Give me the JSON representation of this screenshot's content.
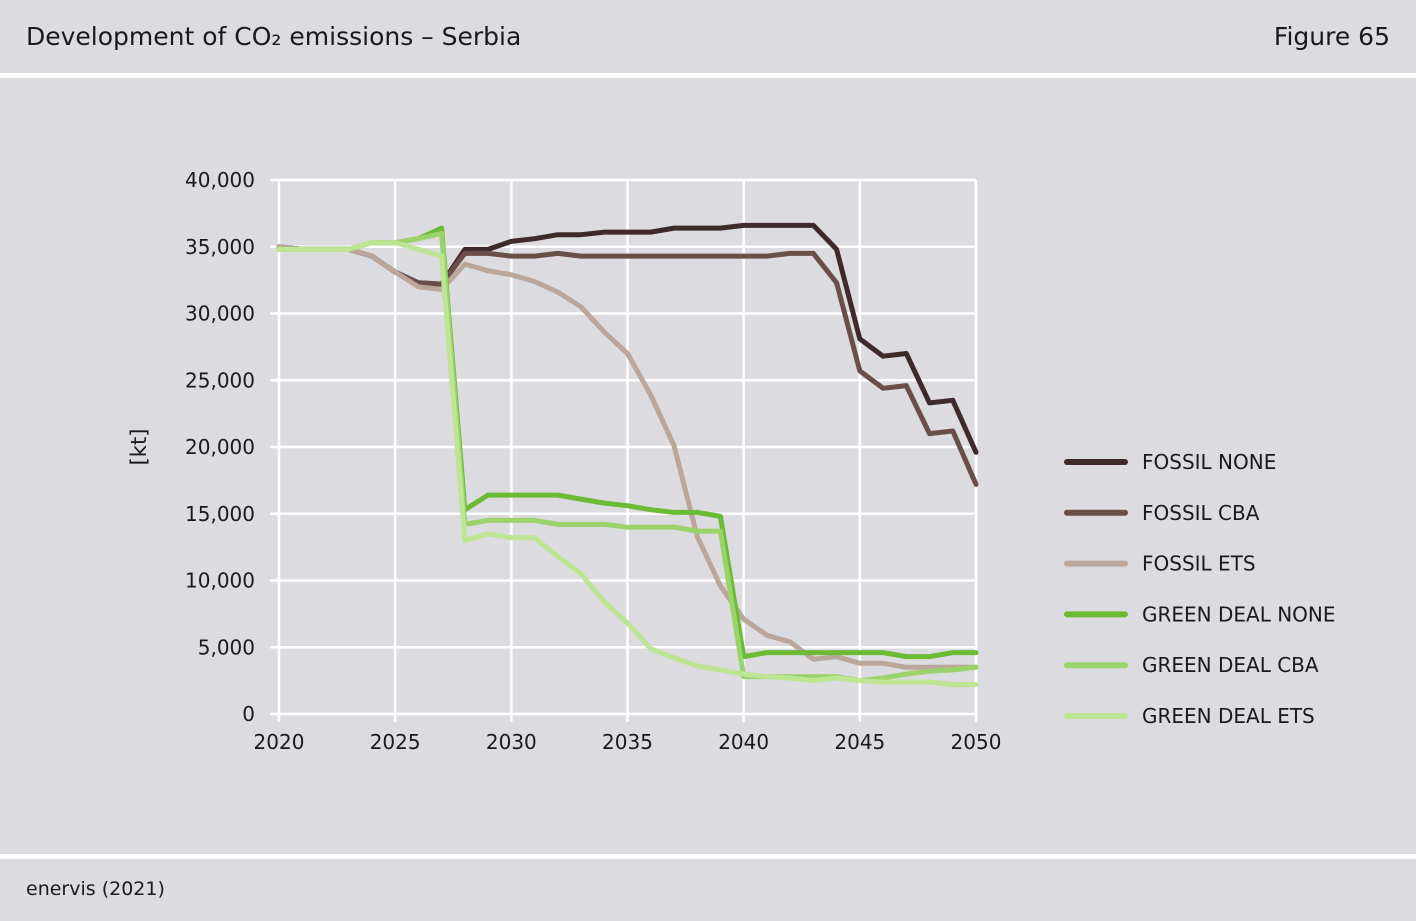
{
  "header": {
    "title": "Development of CO₂ emissions – Serbia",
    "figure_label": "Figure 65"
  },
  "footer": {
    "source": "enervis (2021)"
  },
  "colors": {
    "background": "#dcdbe0",
    "grid": "#ffffff",
    "fossil_none": "#3f2a2b",
    "fossil_cba": "#6a4e4a",
    "fossil_ets": "#bba69c",
    "green_deal_none": "#6bbb34",
    "green_deal_cba": "#9bd36b",
    "green_deal_ets": "#bde594"
  },
  "chart_data": {
    "type": "line",
    "title": "",
    "xlabel": "",
    "ylabel": "[kt]",
    "xlim": [
      2020,
      2050
    ],
    "ylim": [
      0,
      40000
    ],
    "x_ticks": [
      2020,
      2025,
      2030,
      2035,
      2040,
      2045,
      2050
    ],
    "y_ticks": [
      0,
      5000,
      10000,
      15000,
      20000,
      25000,
      30000,
      35000,
      40000
    ],
    "y_tick_labels": [
      "0",
      "5,000",
      "10,000",
      "15,000",
      "20,000",
      "25,000",
      "30,000",
      "35,000",
      "40,000"
    ],
    "grid": true,
    "legend_position": "right",
    "x": [
      2020,
      2021,
      2022,
      2023,
      2024,
      2025,
      2026,
      2027,
      2028,
      2029,
      2030,
      2031,
      2032,
      2033,
      2034,
      2035,
      2036,
      2037,
      2038,
      2039,
      2040,
      2041,
      2042,
      2043,
      2044,
      2045,
      2046,
      2047,
      2048,
      2049,
      2050
    ],
    "series": [
      {
        "name": "FOSSIL NONE",
        "color_key": "fossil_none",
        "values": [
          35000,
          34800,
          34800,
          34800,
          34300,
          33100,
          32300,
          32200,
          34800,
          34800,
          35400,
          35600,
          35900,
          35900,
          36100,
          36100,
          36100,
          36400,
          36400,
          36400,
          36600,
          36600,
          36600,
          36600,
          34800,
          28100,
          26800,
          27000,
          23300,
          23500,
          19600
        ]
      },
      {
        "name": "FOSSIL CBA",
        "color_key": "fossil_cba",
        "values": [
          35000,
          34800,
          34800,
          34800,
          34300,
          33100,
          32300,
          32200,
          34500,
          34500,
          34300,
          34300,
          34500,
          34300,
          34300,
          34300,
          34300,
          34300,
          34300,
          34300,
          34300,
          34300,
          34500,
          34500,
          32300,
          25700,
          24400,
          24600,
          21000,
          21200,
          17200
        ]
      },
      {
        "name": "FOSSIL ETS",
        "color_key": "fossil_ets",
        "values": [
          35000,
          34800,
          34800,
          34800,
          34300,
          33100,
          32000,
          31800,
          33700,
          33200,
          32900,
          32400,
          31600,
          30500,
          28600,
          27000,
          23900,
          20100,
          13300,
          9600,
          7100,
          5900,
          5400,
          4100,
          4300,
          3800,
          3800,
          3500,
          3500,
          3500,
          3500
        ]
      },
      {
        "name": "GREEN DEAL NONE",
        "color_key": "green_deal_none",
        "values": [
          34800,
          34800,
          34800,
          34800,
          35300,
          35300,
          35600,
          36400,
          15300,
          16400,
          16400,
          16400,
          16400,
          16100,
          15800,
          15600,
          15300,
          15100,
          15100,
          14800,
          4300,
          4600,
          4600,
          4600,
          4600,
          4600,
          4600,
          4300,
          4300,
          4600,
          4600
        ]
      },
      {
        "name": "GREEN DEAL CBA",
        "color_key": "green_deal_cba",
        "values": [
          34800,
          34800,
          34800,
          34800,
          35300,
          35300,
          35600,
          36000,
          14200,
          14500,
          14500,
          14500,
          14200,
          14200,
          14200,
          14000,
          14000,
          14000,
          13700,
          13700,
          2800,
          2800,
          2800,
          2800,
          2800,
          2500,
          2700,
          3000,
          3200,
          3300,
          3500
        ]
      },
      {
        "name": "GREEN DEAL ETS",
        "color_key": "green_deal_ets",
        "values": [
          34800,
          34800,
          34800,
          34800,
          35300,
          35300,
          34800,
          34300,
          13000,
          13500,
          13200,
          13200,
          11800,
          10500,
          8400,
          6800,
          4900,
          4200,
          3600,
          3300,
          3000,
          2800,
          2700,
          2500,
          2700,
          2500,
          2400,
          2400,
          2400,
          2200,
          2200
        ]
      }
    ]
  }
}
